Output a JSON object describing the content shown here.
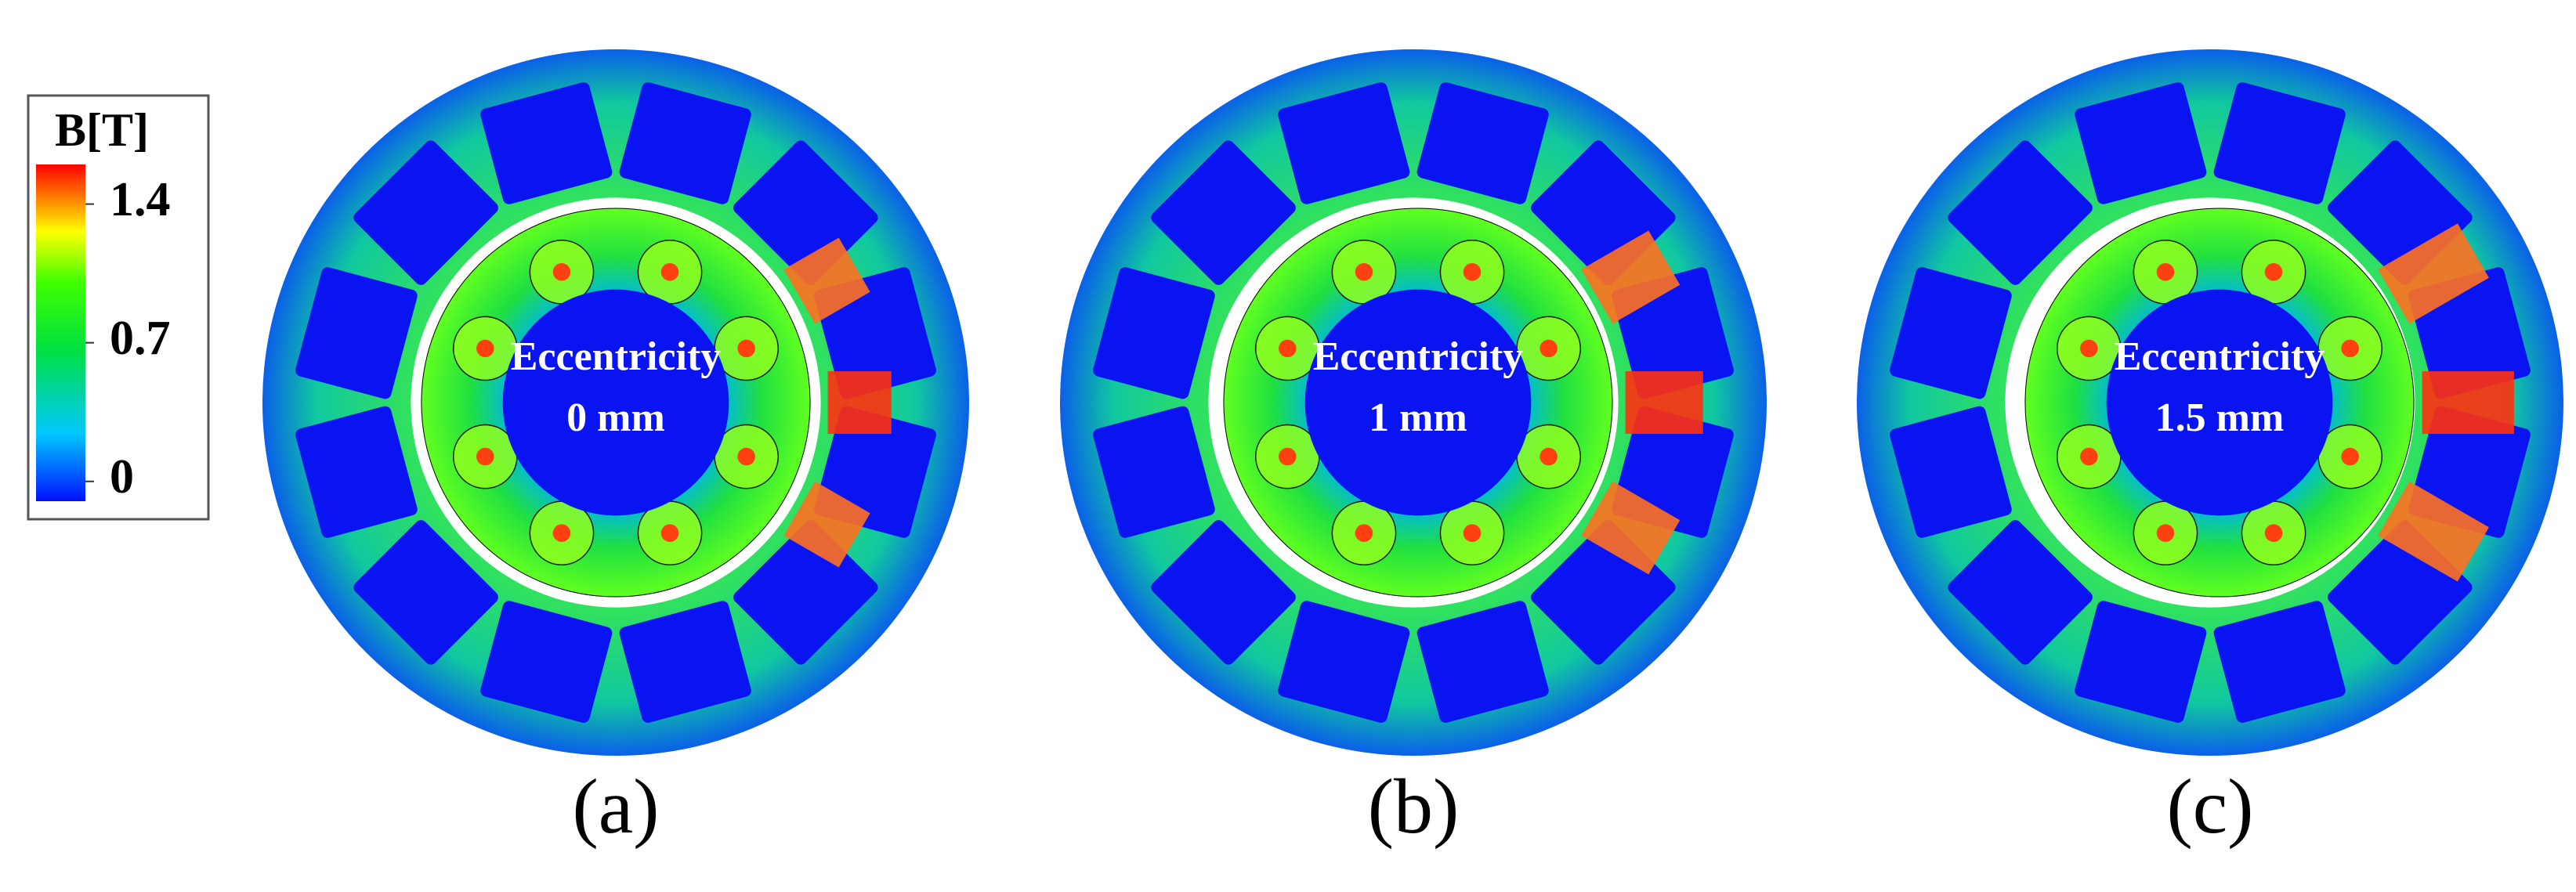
{
  "colorbar": {
    "title": "B[T]",
    "ticks": [
      0,
      0.7,
      1.4
    ],
    "range": [
      -0.1,
      1.6
    ]
  },
  "panels": [
    {
      "lines": [
        "Eccentricity",
        "0 mm"
      ],
      "caption": "(a)"
    },
    {
      "lines": [
        "Eccentricity",
        "1 mm"
      ],
      "caption": "(b)"
    },
    {
      "lines": [
        "Eccentricity",
        "1.5 mm"
      ],
      "caption": "(c)"
    }
  ]
}
